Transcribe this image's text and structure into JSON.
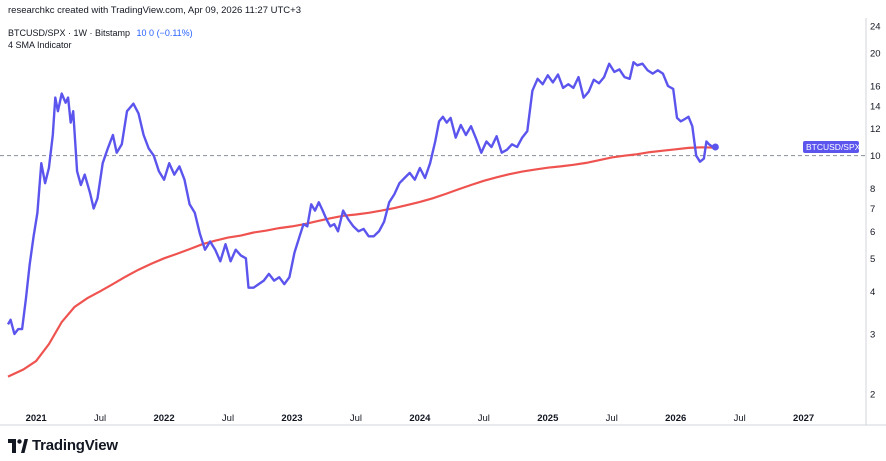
{
  "header": {
    "credit": "researchkc created with TradingView.com, Apr 09, 2026 11:27 UTC+3",
    "symbol_line": "BTCUSD/SPX · 1W · Bitstamp",
    "symbol_value": "10  0 (−0.11%)",
    "indicator_label": "4 SMA Indicator"
  },
  "branding": {
    "logo_text": "TradingView",
    "logo_icon": "tradingview-logo-icon"
  },
  "colors": {
    "price_line": "#5b55ee",
    "sma_line": "#ef5350",
    "price_tag_bg": "#5b55ee",
    "reference_line": "#8a8e99"
  },
  "chart_data": {
    "type": "line",
    "scale": "log",
    "ylim": [
      2,
      24
    ],
    "y_ticks": [
      2,
      3,
      4,
      5,
      6,
      7,
      8,
      10,
      12,
      14,
      16,
      20,
      24
    ],
    "x_ticks": [
      {
        "label": "2021",
        "x": 2021.0,
        "bold": true
      },
      {
        "label": "Jul",
        "x": 2021.5,
        "bold": false
      },
      {
        "label": "2022",
        "x": 2022.0,
        "bold": true
      },
      {
        "label": "Jul",
        "x": 2022.5,
        "bold": false
      },
      {
        "label": "2023",
        "x": 2023.0,
        "bold": true
      },
      {
        "label": "Jul",
        "x": 2023.5,
        "bold": false
      },
      {
        "label": "2024",
        "x": 2024.0,
        "bold": true
      },
      {
        "label": "Jul",
        "x": 2024.5,
        "bold": false
      },
      {
        "label": "2025",
        "x": 2025.0,
        "bold": true
      },
      {
        "label": "Jul",
        "x": 2025.5,
        "bold": false
      },
      {
        "label": "2026",
        "x": 2026.0,
        "bold": true
      },
      {
        "label": "Jul",
        "x": 2026.5,
        "bold": false
      },
      {
        "label": "2027",
        "x": 2027.0,
        "bold": true
      }
    ],
    "xlim": [
      2020.78,
      2027.3
    ],
    "reference_value": 10,
    "last_price_label": "BTCUSD/SPX",
    "series": [
      {
        "name": "BTCUSD/SPX",
        "color": "#5b55ee",
        "points": [
          [
            2020.78,
            3.2
          ],
          [
            2020.8,
            3.3
          ],
          [
            2020.83,
            3.0
          ],
          [
            2020.86,
            3.1
          ],
          [
            2020.89,
            3.1
          ],
          [
            2020.92,
            3.8
          ],
          [
            2020.95,
            4.8
          ],
          [
            2020.98,
            5.8
          ],
          [
            2021.01,
            6.8
          ],
          [
            2021.04,
            9.5
          ],
          [
            2021.07,
            8.3
          ],
          [
            2021.1,
            9.2
          ],
          [
            2021.13,
            11.5
          ],
          [
            2021.15,
            14.8
          ],
          [
            2021.17,
            13.5
          ],
          [
            2021.2,
            15.2
          ],
          [
            2021.23,
            14.3
          ],
          [
            2021.25,
            14.8
          ],
          [
            2021.27,
            12.5
          ],
          [
            2021.29,
            13.5
          ],
          [
            2021.32,
            9.0
          ],
          [
            2021.35,
            8.2
          ],
          [
            2021.38,
            8.8
          ],
          [
            2021.42,
            7.8
          ],
          [
            2021.45,
            7.0
          ],
          [
            2021.48,
            7.5
          ],
          [
            2021.52,
            9.5
          ],
          [
            2021.56,
            10.5
          ],
          [
            2021.6,
            11.5
          ],
          [
            2021.63,
            10.2
          ],
          [
            2021.67,
            10.8
          ],
          [
            2021.71,
            13.5
          ],
          [
            2021.76,
            14.2
          ],
          [
            2021.8,
            13.3
          ],
          [
            2021.84,
            11.5
          ],
          [
            2021.88,
            10.5
          ],
          [
            2021.92,
            10.0
          ],
          [
            2021.96,
            9.0
          ],
          [
            2022.0,
            8.5
          ],
          [
            2022.04,
            9.5
          ],
          [
            2022.08,
            8.8
          ],
          [
            2022.12,
            9.3
          ],
          [
            2022.16,
            8.5
          ],
          [
            2022.2,
            7.2
          ],
          [
            2022.24,
            6.8
          ],
          [
            2022.28,
            5.9
          ],
          [
            2022.32,
            5.3
          ],
          [
            2022.36,
            5.6
          ],
          [
            2022.4,
            5.3
          ],
          [
            2022.44,
            4.9
          ],
          [
            2022.48,
            5.5
          ],
          [
            2022.52,
            4.9
          ],
          [
            2022.56,
            5.3
          ],
          [
            2022.6,
            5.1
          ],
          [
            2022.64,
            5.0
          ],
          [
            2022.66,
            4.1
          ],
          [
            2022.7,
            4.1
          ],
          [
            2022.74,
            4.2
          ],
          [
            2022.78,
            4.3
          ],
          [
            2022.82,
            4.5
          ],
          [
            2022.86,
            4.3
          ],
          [
            2022.9,
            4.4
          ],
          [
            2022.94,
            4.2
          ],
          [
            2022.98,
            4.4
          ],
          [
            2023.02,
            5.2
          ],
          [
            2023.06,
            5.8
          ],
          [
            2023.09,
            6.3
          ],
          [
            2023.12,
            6.2
          ],
          [
            2023.15,
            7.2
          ],
          [
            2023.18,
            6.9
          ],
          [
            2023.21,
            7.3
          ],
          [
            2023.24,
            6.9
          ],
          [
            2023.27,
            6.5
          ],
          [
            2023.3,
            6.2
          ],
          [
            2023.33,
            6.3
          ],
          [
            2023.36,
            6.0
          ],
          [
            2023.4,
            6.9
          ],
          [
            2023.44,
            6.5
          ],
          [
            2023.48,
            6.2
          ],
          [
            2023.52,
            6.0
          ],
          [
            2023.56,
            6.1
          ],
          [
            2023.6,
            5.8
          ],
          [
            2023.64,
            5.8
          ],
          [
            2023.68,
            6.0
          ],
          [
            2023.72,
            6.4
          ],
          [
            2023.76,
            7.3
          ],
          [
            2023.8,
            7.7
          ],
          [
            2023.84,
            8.3
          ],
          [
            2023.88,
            8.6
          ],
          [
            2023.92,
            8.9
          ],
          [
            2023.96,
            8.5
          ],
          [
            2024.0,
            9.2
          ],
          [
            2024.04,
            8.6
          ],
          [
            2024.08,
            9.5
          ],
          [
            2024.12,
            11.0
          ],
          [
            2024.15,
            12.6
          ],
          [
            2024.18,
            13.0
          ],
          [
            2024.21,
            12.5
          ],
          [
            2024.24,
            12.9
          ],
          [
            2024.28,
            11.3
          ],
          [
            2024.32,
            12.3
          ],
          [
            2024.36,
            11.5
          ],
          [
            2024.4,
            12.2
          ],
          [
            2024.44,
            11.2
          ],
          [
            2024.48,
            10.2
          ],
          [
            2024.52,
            11.0
          ],
          [
            2024.56,
            10.6
          ],
          [
            2024.6,
            11.4
          ],
          [
            2024.64,
            10.2
          ],
          [
            2024.68,
            10.4
          ],
          [
            2024.72,
            10.8
          ],
          [
            2024.76,
            10.6
          ],
          [
            2024.8,
            11.3
          ],
          [
            2024.84,
            11.8
          ],
          [
            2024.88,
            15.5
          ],
          [
            2024.92,
            16.8
          ],
          [
            2024.96,
            16.2
          ],
          [
            2025.0,
            17.2
          ],
          [
            2025.04,
            16.4
          ],
          [
            2025.08,
            17.3
          ],
          [
            2025.12,
            15.8
          ],
          [
            2025.16,
            16.2
          ],
          [
            2025.2,
            15.8
          ],
          [
            2025.24,
            17.0
          ],
          [
            2025.28,
            14.8
          ],
          [
            2025.32,
            15.4
          ],
          [
            2025.36,
            16.7
          ],
          [
            2025.4,
            16.3
          ],
          [
            2025.44,
            17.0
          ],
          [
            2025.48,
            18.6
          ],
          [
            2025.52,
            17.6
          ],
          [
            2025.56,
            17.9
          ],
          [
            2025.6,
            17.0
          ],
          [
            2025.64,
            16.8
          ],
          [
            2025.67,
            18.8
          ],
          [
            2025.7,
            18.4
          ],
          [
            2025.74,
            18.6
          ],
          [
            2025.78,
            17.8
          ],
          [
            2025.82,
            17.4
          ],
          [
            2025.86,
            17.8
          ],
          [
            2025.9,
            17.4
          ],
          [
            2025.94,
            16.0
          ],
          [
            2025.98,
            15.7
          ],
          [
            2026.01,
            12.9
          ],
          [
            2026.04,
            12.6
          ],
          [
            2026.07,
            12.8
          ],
          [
            2026.1,
            13.0
          ],
          [
            2026.13,
            12.2
          ],
          [
            2026.16,
            10.0
          ],
          [
            2026.19,
            9.6
          ],
          [
            2026.22,
            9.8
          ],
          [
            2026.24,
            11.0
          ],
          [
            2026.26,
            10.8
          ],
          [
            2026.29,
            10.6
          ],
          [
            2026.31,
            10.6
          ]
        ]
      },
      {
        "name": "SMA",
        "color": "#ef5350",
        "points": [
          [
            2020.78,
            2.25
          ],
          [
            2020.9,
            2.36
          ],
          [
            2021.0,
            2.5
          ],
          [
            2021.1,
            2.8
          ],
          [
            2021.2,
            3.25
          ],
          [
            2021.3,
            3.6
          ],
          [
            2021.4,
            3.82
          ],
          [
            2021.5,
            4.0
          ],
          [
            2021.6,
            4.2
          ],
          [
            2021.7,
            4.42
          ],
          [
            2021.8,
            4.63
          ],
          [
            2021.9,
            4.82
          ],
          [
            2022.0,
            5.0
          ],
          [
            2022.1,
            5.15
          ],
          [
            2022.2,
            5.32
          ],
          [
            2022.3,
            5.5
          ],
          [
            2022.4,
            5.63
          ],
          [
            2022.5,
            5.75
          ],
          [
            2022.6,
            5.83
          ],
          [
            2022.7,
            5.95
          ],
          [
            2022.8,
            6.03
          ],
          [
            2022.9,
            6.13
          ],
          [
            2023.0,
            6.2
          ],
          [
            2023.1,
            6.3
          ],
          [
            2023.2,
            6.43
          ],
          [
            2023.3,
            6.55
          ],
          [
            2023.4,
            6.66
          ],
          [
            2023.5,
            6.72
          ],
          [
            2023.6,
            6.8
          ],
          [
            2023.7,
            6.9
          ],
          [
            2023.8,
            7.02
          ],
          [
            2023.9,
            7.16
          ],
          [
            2024.0,
            7.32
          ],
          [
            2024.1,
            7.5
          ],
          [
            2024.2,
            7.72
          ],
          [
            2024.3,
            7.96
          ],
          [
            2024.4,
            8.2
          ],
          [
            2024.5,
            8.44
          ],
          [
            2024.6,
            8.64
          ],
          [
            2024.7,
            8.82
          ],
          [
            2024.8,
            8.98
          ],
          [
            2024.9,
            9.1
          ],
          [
            2025.0,
            9.22
          ],
          [
            2025.1,
            9.3
          ],
          [
            2025.2,
            9.4
          ],
          [
            2025.3,
            9.52
          ],
          [
            2025.4,
            9.7
          ],
          [
            2025.5,
            9.88
          ],
          [
            2025.6,
            10.0
          ],
          [
            2025.7,
            10.1
          ],
          [
            2025.8,
            10.24
          ],
          [
            2025.9,
            10.34
          ],
          [
            2026.0,
            10.44
          ],
          [
            2026.1,
            10.54
          ],
          [
            2026.2,
            10.58
          ],
          [
            2026.31,
            10.56
          ]
        ]
      }
    ]
  }
}
